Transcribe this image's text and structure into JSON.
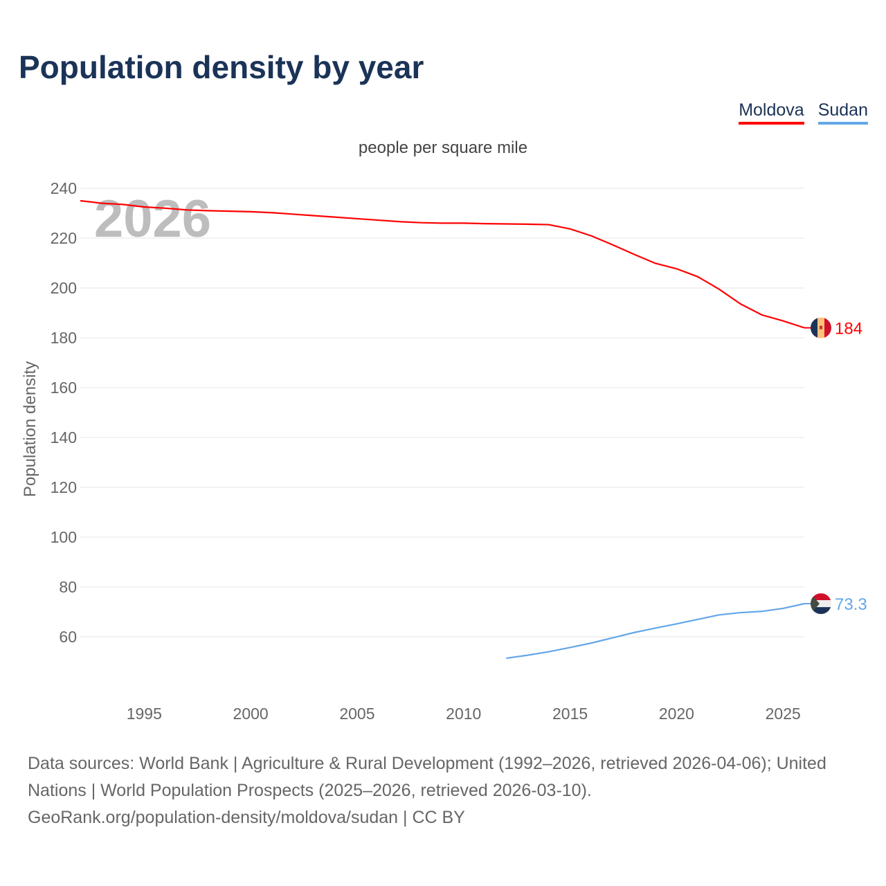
{
  "chart_data": {
    "type": "line",
    "title": "Population density by year",
    "subtitle": "people per square mile",
    "ylabel": "Population density",
    "xlabel": "",
    "watermark_year": "2026",
    "xlim": [
      1992,
      2026
    ],
    "ylim": [
      42,
      245
    ],
    "yticks": [
      60,
      80,
      100,
      120,
      140,
      160,
      180,
      200,
      220,
      240
    ],
    "xticks": [
      1995,
      2000,
      2005,
      2010,
      2015,
      2020,
      2025
    ],
    "grid": true,
    "legend_position": "top-right",
    "series": [
      {
        "name": "Moldova",
        "color": "#ff0000",
        "end_label": "184",
        "x": [
          1992,
          1993,
          1994,
          1995,
          1996,
          1997,
          1998,
          1999,
          2000,
          2001,
          2002,
          2003,
          2004,
          2005,
          2006,
          2007,
          2008,
          2009,
          2010,
          2011,
          2012,
          2013,
          2014,
          2015,
          2016,
          2017,
          2018,
          2019,
          2020,
          2021,
          2022,
          2023,
          2024,
          2025,
          2026
        ],
        "values": [
          235,
          234,
          233.5,
          232.5,
          232,
          231.3,
          231,
          230.8,
          230.6,
          230.2,
          229.6,
          229,
          228.4,
          227.8,
          227.2,
          226.6,
          226.2,
          226,
          226,
          225.8,
          225.7,
          225.6,
          225.4,
          223.7,
          220.9,
          217.3,
          213.5,
          209.9,
          207.7,
          204.5,
          199.5,
          193.6,
          189.2,
          186.8,
          184
        ]
      },
      {
        "name": "Sudan",
        "color": "#63a6e8",
        "end_label": "73.3",
        "x": [
          2012,
          2013,
          2014,
          2015,
          2016,
          2017,
          2018,
          2019,
          2020,
          2021,
          2022,
          2023,
          2024,
          2025,
          2026
        ],
        "values": [
          51.4,
          52.6,
          54,
          55.7,
          57.5,
          59.6,
          61.7,
          63.5,
          65.2,
          67,
          68.8,
          69.7,
          70.2,
          71.4,
          73.3
        ]
      }
    ]
  },
  "sources": {
    "line1": "Data sources: World Bank | Agriculture & Rural Development (1992–2026, retrieved 2026-04-06); United Nations | World Population Prospects (2025–2026, retrieved 2026-03-10).",
    "line2": "GeoRank.org/population-density/moldova/sudan | CC BY"
  }
}
